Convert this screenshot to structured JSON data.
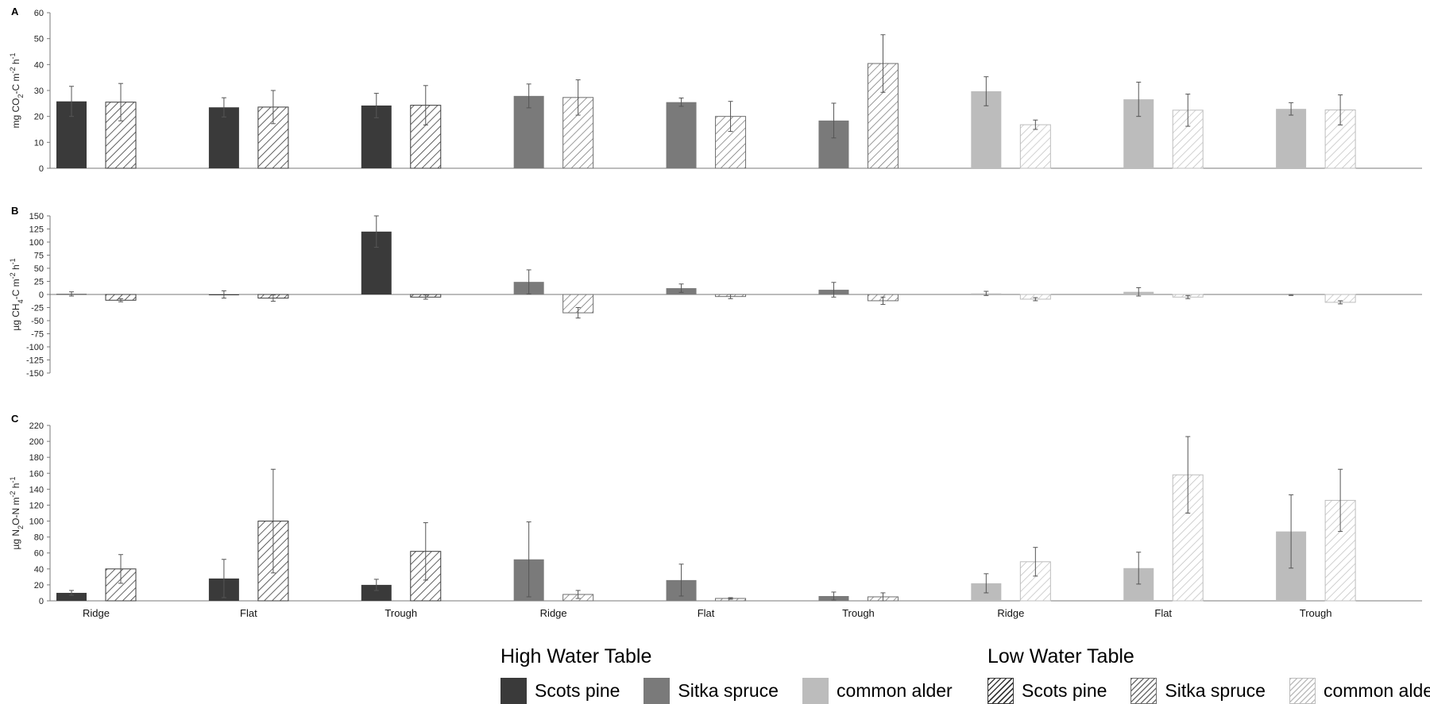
{
  "chart_data": [
    {
      "panel": "A",
      "type": "bar",
      "ylabel": "mg CO2-C m-2 h-1",
      "ylim": [
        0,
        60
      ],
      "yticks": [
        "0",
        "10",
        "20",
        "30",
        "40",
        "50",
        "60"
      ],
      "categories": [
        "Ridge",
        "Flat",
        "Trough",
        "Ridge",
        "Flat",
        "Trough",
        "Ridge",
        "Flat",
        "Trough"
      ],
      "series": [
        {
          "values": [
            25.8,
            23.5,
            24.2,
            27.9,
            25.5,
            18.4,
            29.7,
            26.6,
            22.9
          ],
          "errors": [
            5.8,
            3.7,
            4.7,
            4.6,
            1.6,
            6.7,
            5.6,
            6.6,
            2.4
          ]
        },
        {
          "values": [
            25.5,
            23.6,
            24.3,
            27.3,
            20.0,
            40.4,
            16.8,
            22.4,
            22.5
          ],
          "errors": [
            7.2,
            6.4,
            7.6,
            6.8,
            5.8,
            11.1,
            1.8,
            6.2,
            5.8
          ]
        }
      ]
    },
    {
      "panel": "B",
      "type": "bar",
      "ylabel": "µg CH4-C m-2 h-1",
      "ylim": [
        -150,
        150
      ],
      "yticks": [
        "150",
        "125",
        "100",
        "75",
        "50",
        "25",
        "0",
        "-25",
        "-50",
        "-75",
        "-100",
        "-125",
        "-150"
      ],
      "categories": [
        "Ridge",
        "Flat",
        "Trough",
        "Ridge",
        "Flat",
        "Trough",
        "Ridge",
        "Flat",
        "Trough"
      ],
      "series": [
        {
          "values": [
            1,
            0,
            120,
            24,
            12,
            9,
            2,
            5,
            -1
          ],
          "errors": [
            4,
            7,
            30,
            23,
            8,
            14,
            4,
            8,
            1
          ]
        },
        {
          "values": [
            -11,
            -7,
            -5,
            -35,
            -4,
            -12,
            -9,
            -5,
            -15
          ],
          "errors": [
            3,
            6,
            4,
            10,
            4,
            7,
            3,
            3,
            3
          ]
        }
      ]
    },
    {
      "panel": "C",
      "type": "bar",
      "ylabel": "µg N2O-N m-2 h-1",
      "ylim": [
        0,
        220
      ],
      "yticks": [
        "0",
        "20",
        "40",
        "60",
        "80",
        "100",
        "120",
        "140",
        "160",
        "180",
        "200",
        "220"
      ],
      "categories": [
        "Ridge",
        "Flat",
        "Trough",
        "Ridge",
        "Flat",
        "Trough",
        "Ridge",
        "Flat",
        "Trough"
      ],
      "series": [
        {
          "values": [
            10,
            28,
            20,
            52,
            26,
            6,
            22,
            41,
            87
          ],
          "errors": [
            3,
            24,
            7,
            47,
            20,
            5,
            12,
            20,
            46
          ]
        },
        {
          "values": [
            40,
            100,
            62,
            8,
            3,
            5,
            49,
            158,
            126
          ],
          "errors": [
            18,
            65,
            36,
            5,
            1,
            5,
            18,
            48,
            39
          ]
        }
      ]
    }
  ],
  "colors": {
    "scots_pine": "#3a3a3a",
    "sitka_spruce": "#7a7a7a",
    "common_alder": "#bcbcbc",
    "hatch_scots": "#3a3a3a",
    "hatch_sitka": "#6e6e6e",
    "hatch_alder": "#bdbdbd",
    "error_bar": "#555555",
    "axis": "#7a7a7a"
  },
  "legend": {
    "high": {
      "title": "High Water Table",
      "items": [
        "Scots pine",
        "Sitka spruce",
        "common alder"
      ]
    },
    "low": {
      "title": "Low Water Table",
      "items": [
        "Scots pine",
        "Sitka spruce",
        "common alder"
      ]
    }
  }
}
